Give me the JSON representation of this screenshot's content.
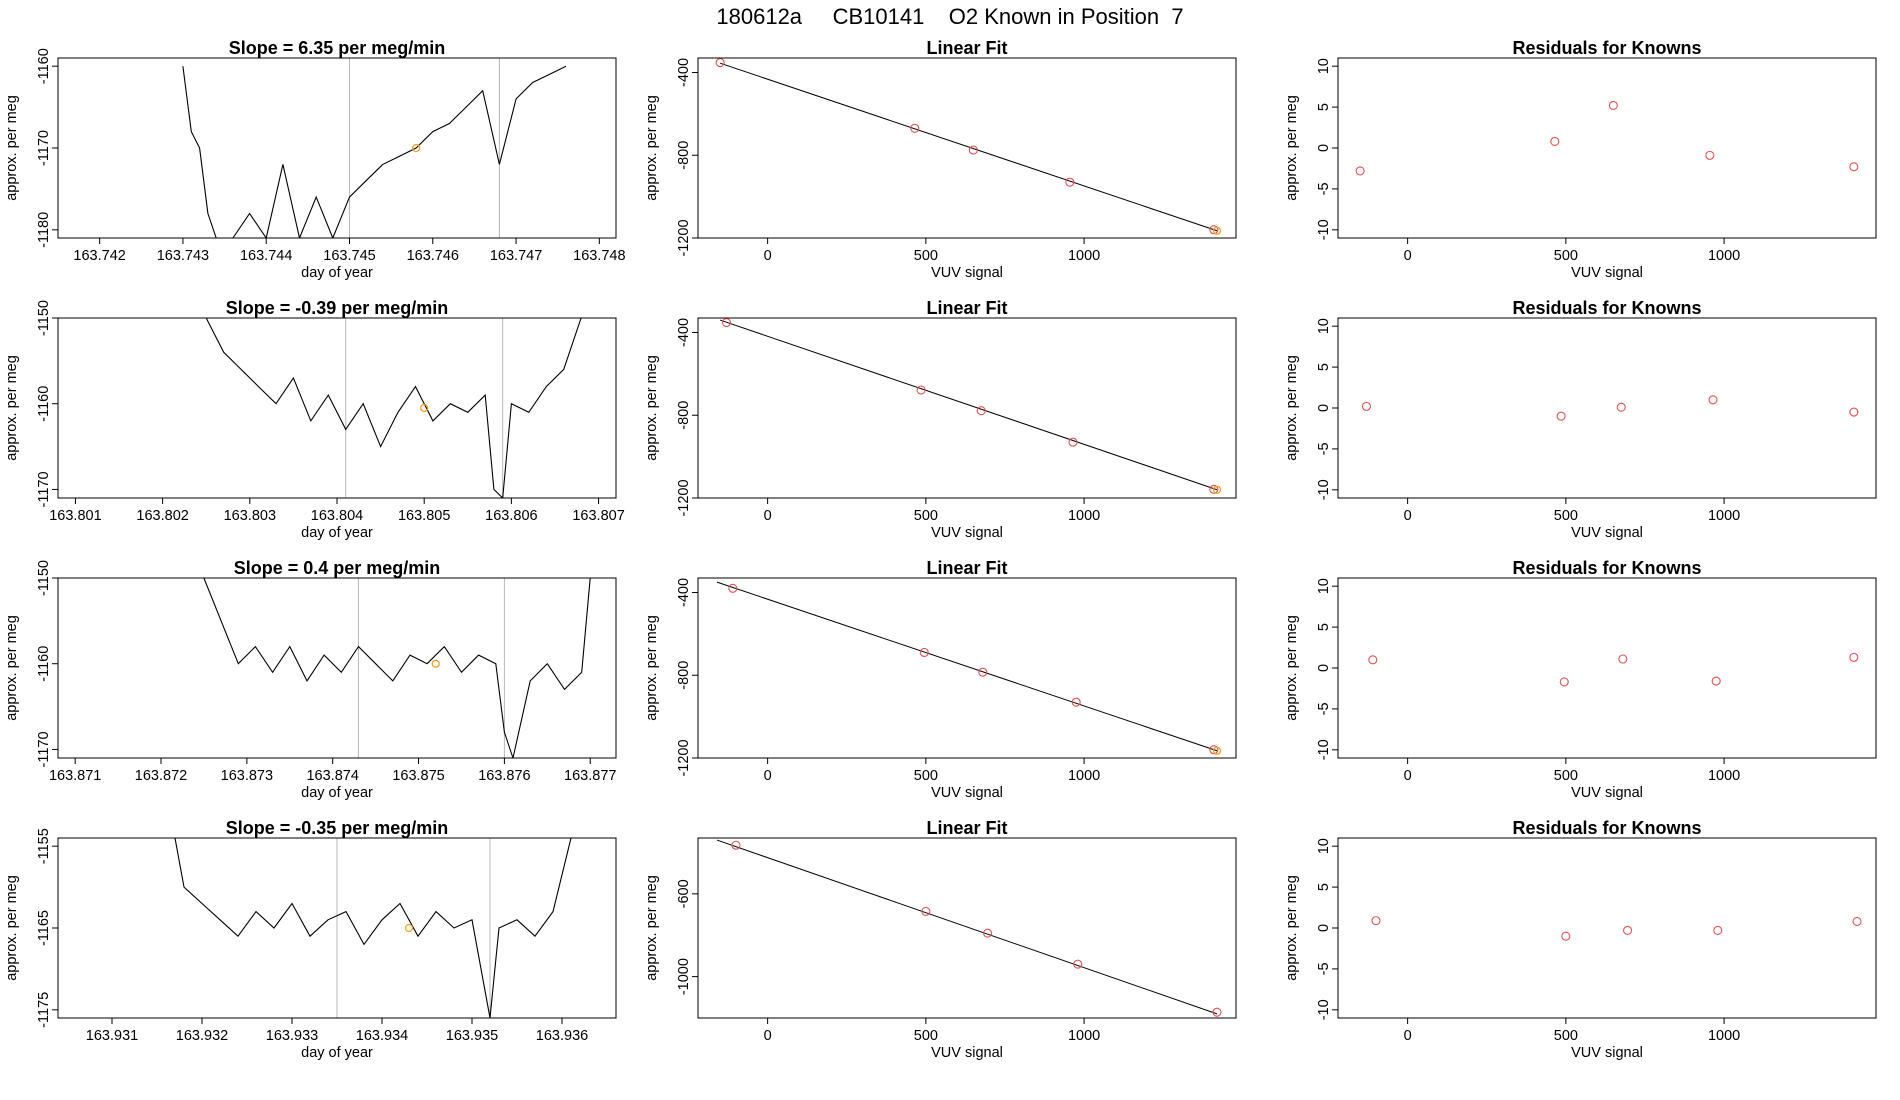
{
  "page_title": "180612a     CB10141    O2 Known in Position  7",
  "colors": {
    "line": "#000000",
    "marker": "#e05050",
    "highlight": "#f0a020",
    "vline": "#b8b8b8"
  },
  "chart_data": [
    {
      "type": "line",
      "panel": "row1-timeseries",
      "title": "Slope =  6.35  per meg/min",
      "xlabel": "day of year",
      "ylabel": "approx. per meg",
      "xlim": [
        163.7415,
        163.7482
      ],
      "ylim": [
        -1181,
        -1159
      ],
      "xticks": [
        163.742,
        163.743,
        163.744,
        163.745,
        163.746,
        163.747,
        163.748
      ],
      "xtick_labels": [
        "163.742",
        "163.743",
        "163.744",
        "163.745",
        "163.746",
        "163.747",
        "163.748"
      ],
      "yticks": [
        -1180,
        -1170,
        -1160
      ],
      "ytick_labels": [
        "-1180",
        "-1170",
        "-1160"
      ],
      "vlines": [
        163.745,
        163.7468
      ],
      "highlight_point": [
        163.7458,
        -1170
      ],
      "series": [
        {
          "x": [
            163.743,
            163.7431,
            163.7432,
            163.7433,
            163.7434,
            163.7436,
            163.7438,
            163.744,
            163.7442,
            163.7444,
            163.7446,
            163.7448,
            163.745,
            163.7452,
            163.7454,
            163.7456,
            163.7458,
            163.746,
            163.7462,
            163.7464,
            163.7466,
            163.7468,
            163.747,
            163.7472,
            163.7474,
            163.7476
          ],
          "y": [
            -1160,
            -1168,
            -1170,
            -1178,
            -1181,
            -1181,
            -1178,
            -1181,
            -1172,
            -1181,
            -1176,
            -1181,
            -1176,
            -1174,
            -1172,
            -1171,
            -1170,
            -1168,
            -1167,
            -1165,
            -1163,
            -1172,
            -1164,
            -1162,
            -1161,
            -1160
          ]
        }
      ]
    },
    {
      "type": "scatter",
      "panel": "row1-linear-fit",
      "title": "Linear Fit",
      "xlabel": "VUV signal",
      "ylabel": "approx. per meg",
      "xlim": [
        -220,
        1480
      ],
      "ylim": [
        -1200,
        -330
      ],
      "xticks": [
        0,
        500,
        1000
      ],
      "xtick_labels": [
        "0",
        "500",
        "1000"
      ],
      "yticks": [
        -1200,
        -800,
        -400
      ],
      "ytick_labels": [
        "-1200",
        "-800",
        "-400"
      ],
      "fit_line": [
        [
          -150,
          -355
        ],
        [
          1420,
          -1165
        ]
      ],
      "points_x": [
        -150,
        465,
        650,
        955,
        1410
      ],
      "points_y": [
        -352,
        -670,
        -775,
        -930,
        -1160
      ],
      "highlight_point": [
        1420,
        -1165
      ]
    },
    {
      "type": "scatter",
      "panel": "row1-residuals",
      "title": "Residuals for Knowns",
      "xlabel": "VUV signal",
      "ylabel": "approx. per meg",
      "xlim": [
        -220,
        1480
      ],
      "ylim": [
        -11,
        11
      ],
      "xticks": [
        0,
        500,
        1000
      ],
      "xtick_labels": [
        "0",
        "500",
        "1000"
      ],
      "yticks": [
        -10,
        -5,
        0,
        5,
        10
      ],
      "ytick_labels": [
        "-10",
        "-5",
        "0",
        "5",
        "10"
      ],
      "points_x": [
        -150,
        465,
        650,
        955,
        1410
      ],
      "points_y": [
        -2.8,
        0.8,
        5.2,
        -0.9,
        -2.3
      ]
    },
    {
      "type": "line",
      "panel": "row2-timeseries",
      "title": "Slope =  -0.39  per meg/min",
      "xlabel": "day of year",
      "ylabel": "approx. per meg",
      "xlim": [
        163.8008,
        163.8072
      ],
      "ylim": [
        -1171,
        -1150
      ],
      "xticks": [
        163.801,
        163.802,
        163.803,
        163.804,
        163.805,
        163.806,
        163.807
      ],
      "xtick_labels": [
        "163.801",
        "163.802",
        "163.803",
        "163.804",
        "163.805",
        "163.806",
        "163.807"
      ],
      "yticks": [
        -1170,
        -1160,
        -1150
      ],
      "ytick_labels": [
        "-1170",
        "-1160",
        "-1150"
      ],
      "vlines": [
        163.8041,
        163.8059
      ],
      "highlight_point": [
        163.805,
        -1160.5
      ],
      "series": [
        {
          "x": [
            163.8025,
            163.8027,
            163.8029,
            163.8031,
            163.8033,
            163.8035,
            163.8037,
            163.8039,
            163.8041,
            163.8043,
            163.8045,
            163.8047,
            163.8049,
            163.8051,
            163.8053,
            163.8055,
            163.8057,
            163.8058,
            163.8059,
            163.806,
            163.8062,
            163.8064,
            163.8066,
            163.8068
          ],
          "y": [
            -1150,
            -1154,
            -1156,
            -1158,
            -1160,
            -1157,
            -1162,
            -1159,
            -1163,
            -1160,
            -1165,
            -1161,
            -1158,
            -1162,
            -1160,
            -1161,
            -1159,
            -1170,
            -1171,
            -1160,
            -1161,
            -1158,
            -1156,
            -1150
          ]
        }
      ]
    },
    {
      "type": "scatter",
      "panel": "row2-linear-fit",
      "title": "Linear Fit",
      "xlabel": "VUV signal",
      "ylabel": "approx. per meg",
      "xlim": [
        -220,
        1480
      ],
      "ylim": [
        -1200,
        -330
      ],
      "xticks": [
        0,
        500,
        1000
      ],
      "xtick_labels": [
        "0",
        "500",
        "1000"
      ],
      "yticks": [
        -1200,
        -800,
        -400
      ],
      "ytick_labels": [
        "-1200",
        "-800",
        "-400"
      ],
      "fit_line": [
        [
          -150,
          -340
        ],
        [
          1420,
          -1160
        ]
      ],
      "points_x": [
        -130,
        485,
        675,
        965,
        1410
      ],
      "points_y": [
        -352,
        -678,
        -778,
        -930,
        -1158
      ],
      "highlight_point": [
        1420,
        -1160
      ]
    },
    {
      "type": "scatter",
      "panel": "row2-residuals",
      "title": "Residuals for Knowns",
      "xlabel": "VUV signal",
      "ylabel": "approx. per meg",
      "xlim": [
        -220,
        1480
      ],
      "ylim": [
        -11,
        11
      ],
      "xticks": [
        0,
        500,
        1000
      ],
      "xtick_labels": [
        "0",
        "500",
        "1000"
      ],
      "yticks": [
        -10,
        -5,
        0,
        5,
        10
      ],
      "ytick_labels": [
        "-10",
        "-5",
        "0",
        "5",
        "10"
      ],
      "points_x": [
        -130,
        485,
        675,
        965,
        1410
      ],
      "points_y": [
        0.2,
        -1.0,
        0.1,
        1.0,
        -0.5
      ]
    },
    {
      "type": "line",
      "panel": "row3-timeseries",
      "title": "Slope =  0.4  per meg/min",
      "xlabel": "day of year",
      "ylabel": "approx. per meg",
      "xlim": [
        163.8708,
        163.8773
      ],
      "ylim": [
        -1171,
        -1150
      ],
      "xticks": [
        163.871,
        163.872,
        163.873,
        163.874,
        163.875,
        163.876,
        163.877
      ],
      "xtick_labels": [
        "163.871",
        "163.872",
        "163.873",
        "163.874",
        "163.875",
        "163.876",
        "163.877"
      ],
      "yticks": [
        -1170,
        -1160,
        -1150
      ],
      "ytick_labels": [
        "-1170",
        "-1160",
        "-1150"
      ],
      "vlines": [
        163.8743,
        163.876
      ],
      "highlight_point": [
        163.8752,
        -1160
      ],
      "series": [
        {
          "x": [
            163.8725,
            163.8727,
            163.8729,
            163.8731,
            163.8733,
            163.8735,
            163.8737,
            163.8739,
            163.8741,
            163.8743,
            163.8745,
            163.8747,
            163.8749,
            163.8751,
            163.8753,
            163.8755,
            163.8757,
            163.8759,
            163.876,
            163.8761,
            163.8763,
            163.8765,
            163.8767,
            163.8769,
            163.877
          ],
          "y": [
            -1150,
            -1155,
            -1160,
            -1158,
            -1161,
            -1158,
            -1162,
            -1159,
            -1161,
            -1158,
            -1160,
            -1162,
            -1159,
            -1160,
            -1158,
            -1161,
            -1159,
            -1160,
            -1168,
            -1171,
            -1162,
            -1160,
            -1163,
            -1161,
            -1150
          ]
        }
      ]
    },
    {
      "type": "scatter",
      "panel": "row3-linear-fit",
      "title": "Linear Fit",
      "xlabel": "VUV signal",
      "ylabel": "approx. per meg",
      "xlim": [
        -220,
        1480
      ],
      "ylim": [
        -1200,
        -330
      ],
      "xticks": [
        0,
        500,
        1000
      ],
      "xtick_labels": [
        "0",
        "500",
        "1000"
      ],
      "yticks": [
        -1200,
        -800,
        -400
      ],
      "ytick_labels": [
        "-1200",
        "-800",
        "-400"
      ],
      "fit_line": [
        [
          -160,
          -350
        ],
        [
          1420,
          -1165
        ]
      ],
      "points_x": [
        -110,
        495,
        680,
        975,
        1410
      ],
      "points_y": [
        -380,
        -690,
        -785,
        -930,
        -1160
      ],
      "highlight_point": [
        1420,
        -1165
      ]
    },
    {
      "type": "scatter",
      "panel": "row3-residuals",
      "title": "Residuals for Knowns",
      "xlabel": "VUV signal",
      "ylabel": "approx. per meg",
      "xlim": [
        -220,
        1480
      ],
      "ylim": [
        -11,
        11
      ],
      "xticks": [
        0,
        500,
        1000
      ],
      "xtick_labels": [
        "0",
        "500",
        "1000"
      ],
      "yticks": [
        -10,
        -5,
        0,
        5,
        10
      ],
      "ytick_labels": [
        "-10",
        "-5",
        "0",
        "5",
        "10"
      ],
      "points_x": [
        -110,
        495,
        680,
        975,
        1410
      ],
      "points_y": [
        1.0,
        -1.7,
        1.1,
        -1.6,
        1.3
      ]
    },
    {
      "type": "line",
      "panel": "row4-timeseries",
      "title": "Slope =  -0.35  per meg/min",
      "xlabel": "day of year",
      "ylabel": "approx. per meg",
      "xlim": [
        163.9304,
        163.9366
      ],
      "ylim": [
        -1176,
        -1154
      ],
      "xticks": [
        163.931,
        163.932,
        163.933,
        163.934,
        163.935,
        163.936
      ],
      "xtick_labels": [
        "163.931",
        "163.932",
        "163.933",
        "163.934",
        "163.935",
        "163.936"
      ],
      "yticks": [
        -1175,
        -1165,
        -1155
      ],
      "ytick_labels": [
        "-1175",
        "-1165",
        "-1155"
      ],
      "vlines": [
        163.9335,
        163.9352
      ],
      "highlight_point": [
        163.9343,
        -1165
      ],
      "series": [
        {
          "x": [
            163.9317,
            163.9318,
            163.932,
            163.9322,
            163.9324,
            163.9326,
            163.9328,
            163.933,
            163.9332,
            163.9334,
            163.9336,
            163.9338,
            163.934,
            163.9342,
            163.9344,
            163.9346,
            163.9348,
            163.935,
            163.9351,
            163.9352,
            163.9353,
            163.9355,
            163.9357,
            163.9359,
            163.9361
          ],
          "y": [
            -1154,
            -1160,
            -1162,
            -1164,
            -1166,
            -1163,
            -1165,
            -1162,
            -1166,
            -1164,
            -1163,
            -1167,
            -1164,
            -1162,
            -1166,
            -1163,
            -1165,
            -1164,
            -1170,
            -1176,
            -1165,
            -1164,
            -1166,
            -1163,
            -1154
          ]
        }
      ]
    },
    {
      "type": "scatter",
      "panel": "row4-linear-fit",
      "title": "Linear Fit",
      "xlabel": "VUV signal",
      "ylabel": "approx. per meg",
      "xlim": [
        -220,
        1480
      ],
      "ylim": [
        -1200,
        -330
      ],
      "xticks": [
        0,
        500,
        1000
      ],
      "xtick_labels": [
        "0",
        "500",
        "1000"
      ],
      "yticks": [
        -1000,
        -600
      ],
      "ytick_labels": [
        "-1000",
        "-600"
      ],
      "fit_line": [
        [
          -160,
          -340
        ],
        [
          1420,
          -1180
        ]
      ],
      "points_x": [
        -100,
        500,
        695,
        980,
        1420
      ],
      "points_y": [
        -365,
        -685,
        -790,
        -940,
        -1172
      ],
      "highlight_point": []
    },
    {
      "type": "scatter",
      "panel": "row4-residuals",
      "title": "Residuals for Knowns",
      "xlabel": "VUV signal",
      "ylabel": "approx. per meg",
      "xlim": [
        -220,
        1480
      ],
      "ylim": [
        -11,
        11
      ],
      "xticks": [
        0,
        500,
        1000
      ],
      "xtick_labels": [
        "0",
        "500",
        "1000"
      ],
      "yticks": [
        -10,
        -5,
        0,
        5,
        10
      ],
      "ytick_labels": [
        "-10",
        "-5",
        "0",
        "5",
        "10"
      ],
      "points_x": [
        -100,
        500,
        695,
        980,
        1420
      ],
      "points_y": [
        0.9,
        -1.0,
        -0.3,
        -0.3,
        0.8
      ]
    }
  ]
}
